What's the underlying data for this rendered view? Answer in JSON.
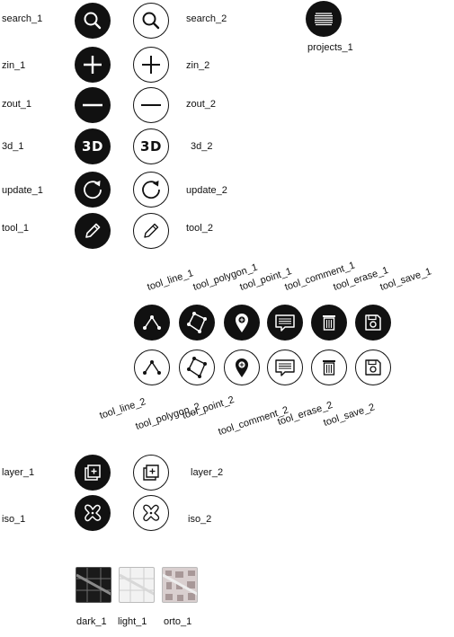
{
  "labels": {
    "search_1": "search_1",
    "search_2": "search_2",
    "zin_1": "zin_1",
    "zin_2": "zin_2",
    "zout_1": "zout_1",
    "zout_2": "zout_2",
    "d3_1": "3d_1",
    "d3_2": "3d_2",
    "update_1": "update_1",
    "update_2": "update_2",
    "tool_1": "tool_1",
    "tool_2": "tool_2",
    "projects_1": "projects_1",
    "tool_line_1": "tool_line_1",
    "tool_polygon_1": "tool_polygon_1",
    "tool_point_1": "tool_point_1",
    "tool_comment_1": "tool_comment_1",
    "tool_erase_1": "tool_erase_1",
    "tool_save_1": "tool_save_1",
    "tool_line_2": "tool_line_2",
    "tool_polygon_2": "tool_polygon_2",
    "tool_point_2": "tool_point_2",
    "tool_comment_2": "tool_comment_2",
    "tool_erase_2": "tool_erase_2",
    "tool_save_2": "tool_save_2",
    "layer_1": "layer_1",
    "layer_2": "layer_2",
    "iso_1": "iso_1",
    "iso_2": "iso_2",
    "dark_1": "dark_1",
    "light_1": "light_1",
    "orto_1": "orto_1"
  },
  "icon_glyphs": {
    "three_d": "3D"
  },
  "colors": {
    "dark": "#111111",
    "light": "#ffffff",
    "tile_dark": "#1a1a1a",
    "tile_light": "#f2f2f2",
    "tile_orto": "#d9cfcf"
  }
}
